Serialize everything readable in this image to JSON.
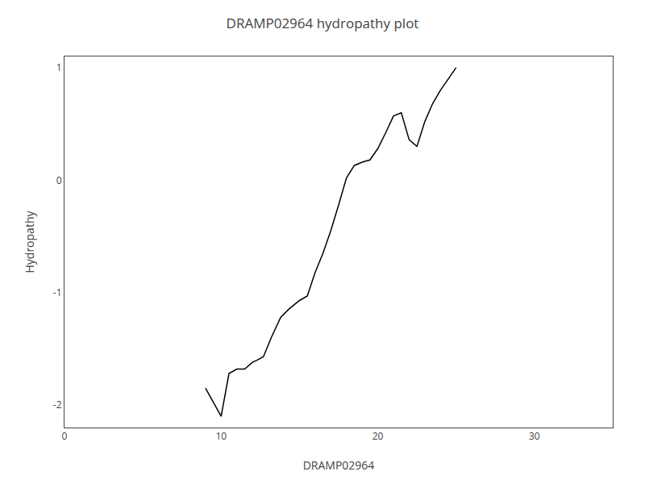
{
  "chart_data": {
    "type": "line",
    "title": "DRAMP02964 hydropathy plot",
    "xlabel": "DRAMP02964",
    "ylabel": "Hydropathy",
    "x": [
      9.0,
      10.0,
      10.5,
      11.0,
      11.5,
      12.0,
      12.3,
      12.7,
      13.2,
      13.8,
      14.3,
      15.0,
      15.5,
      16.0,
      16.5,
      17.0,
      17.5,
      18.0,
      18.5,
      19.0,
      19.5,
      20.0,
      20.5,
      21.0,
      21.5,
      22.0,
      22.5,
      23.0,
      23.5,
      24.0,
      24.5,
      25.0
    ],
    "values": [
      -1.85,
      -2.1,
      -1.72,
      -1.68,
      -1.68,
      -1.62,
      -1.6,
      -1.57,
      -1.4,
      -1.22,
      -1.15,
      -1.07,
      -1.03,
      -0.82,
      -0.65,
      -0.45,
      -0.22,
      0.02,
      0.13,
      0.16,
      0.18,
      0.28,
      0.42,
      0.57,
      0.6,
      0.36,
      0.3,
      0.52,
      0.68,
      0.8,
      0.9,
      1.0
    ],
    "color": "#000000",
    "xlim": [
      0,
      35
    ],
    "ylim": [
      -2.2,
      1.1
    ],
    "xticks": [
      0,
      10,
      20,
      30
    ],
    "yticks": [
      -2,
      -1,
      0,
      1
    ],
    "grid": false
  }
}
